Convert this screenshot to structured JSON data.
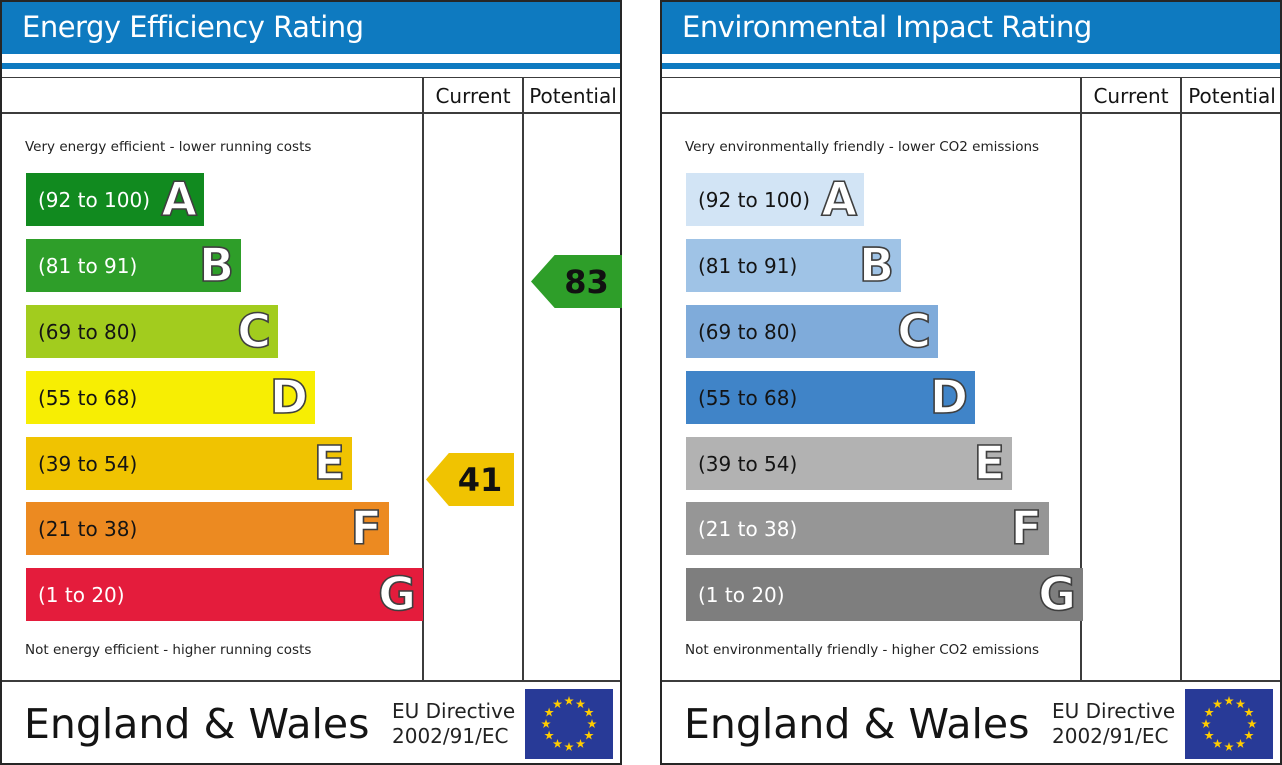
{
  "accent": {
    "header_blue": "#0e7ac0"
  },
  "eu_flag": {
    "blue": "#283a97",
    "yellow": "#ffcc00"
  },
  "panels": [
    {
      "title": "Energy Efficiency Rating",
      "header": {
        "current": "Current",
        "potential": "Potential"
      },
      "top_caption": "Very energy efficient - lower running costs",
      "bottom_caption": "Not energy efficient - higher running costs",
      "bands": [
        {
          "letter": "A",
          "range": "(92 to 100)",
          "color": "#118a1f",
          "text_color": "#ffffff"
        },
        {
          "letter": "B",
          "range": "(81 to 91)",
          "color": "#2e9e29",
          "text_color": "#ffffff"
        },
        {
          "letter": "C",
          "range": "(69 to 80)",
          "color": "#a2cc1e",
          "text_color": "#141414"
        },
        {
          "letter": "D",
          "range": "(55 to 68)",
          "color": "#f7ee03",
          "text_color": "#141414"
        },
        {
          "letter": "E",
          "range": "(39 to 54)",
          "color": "#f0c301",
          "text_color": "#141414"
        },
        {
          "letter": "F",
          "range": "(21 to 38)",
          "color": "#ec8a21",
          "text_color": "#141414"
        },
        {
          "letter": "G",
          "range": "(1 to 20)",
          "color": "#e41c3c",
          "text_color": "#ffffff"
        }
      ],
      "current_arrow": {
        "value": "41",
        "band": "E",
        "color": "#f0c301"
      },
      "potential_arrow": {
        "value": "83",
        "band": "B",
        "color": "#2e9e29"
      },
      "footer": {
        "region": "England & Wales",
        "directive_line1": "EU Directive",
        "directive_line2": "2002/91/EC"
      }
    },
    {
      "title": "Environmental Impact Rating",
      "header": {
        "current": "Current",
        "potential": "Potential"
      },
      "top_caption": "Very environmentally friendly - lower CO2 emissions",
      "bottom_caption": "Not environmentally friendly - higher CO2 emissions",
      "bands": [
        {
          "letter": "A",
          "range": "(92 to 100)",
          "color": "#d2e4f5",
          "text_color": "#141414"
        },
        {
          "letter": "B",
          "range": "(81 to 91)",
          "color": "#9fc3e6",
          "text_color": "#141414"
        },
        {
          "letter": "C",
          "range": "(69 to 80)",
          "color": "#7fabda",
          "text_color": "#141414"
        },
        {
          "letter": "D",
          "range": "(55 to 68)",
          "color": "#4084c8",
          "text_color": "#141414"
        },
        {
          "letter": "E",
          "range": "(39 to 54)",
          "color": "#b2b2b2",
          "text_color": "#141414"
        },
        {
          "letter": "F",
          "range": "(21 to 38)",
          "color": "#969696",
          "text_color": "#ffffff"
        },
        {
          "letter": "G",
          "range": "(1 to 20)",
          "color": "#7e7e7e",
          "text_color": "#ffffff"
        }
      ],
      "current_arrow": null,
      "potential_arrow": null,
      "footer": {
        "region": "England & Wales",
        "directive_line1": "EU Directive",
        "directive_line2": "2002/91/EC"
      }
    }
  ],
  "chart_data": [
    {
      "type": "bar",
      "title": "Energy Efficiency Rating",
      "bands": [
        {
          "letter": "A",
          "min": 92,
          "max": 100
        },
        {
          "letter": "B",
          "min": 81,
          "max": 91
        },
        {
          "letter": "C",
          "min": 69,
          "max": 80
        },
        {
          "letter": "D",
          "min": 55,
          "max": 68
        },
        {
          "letter": "E",
          "min": 39,
          "max": 54
        },
        {
          "letter": "F",
          "min": 21,
          "max": 38
        },
        {
          "letter": "G",
          "min": 1,
          "max": 20
        }
      ],
      "current": 41,
      "current_band": "E",
      "potential": 83,
      "potential_band": "B",
      "top_label": "Very energy efficient - lower running costs",
      "bottom_label": "Not energy efficient - higher running costs",
      "region": "England & Wales",
      "directive": "EU Directive 2002/91/EC"
    },
    {
      "type": "bar",
      "title": "Environmental Impact Rating",
      "bands": [
        {
          "letter": "A",
          "min": 92,
          "max": 100
        },
        {
          "letter": "B",
          "min": 81,
          "max": 91
        },
        {
          "letter": "C",
          "min": 69,
          "max": 80
        },
        {
          "letter": "D",
          "min": 55,
          "max": 68
        },
        {
          "letter": "E",
          "min": 39,
          "max": 54
        },
        {
          "letter": "F",
          "min": 21,
          "max": 38
        },
        {
          "letter": "G",
          "min": 1,
          "max": 20
        }
      ],
      "current": null,
      "potential": null,
      "top_label": "Very environmentally friendly - lower CO2 emissions",
      "bottom_label": "Not environmentally friendly - higher CO2 emissions",
      "region": "England & Wales",
      "directive": "EU Directive 2002/91/EC"
    }
  ]
}
